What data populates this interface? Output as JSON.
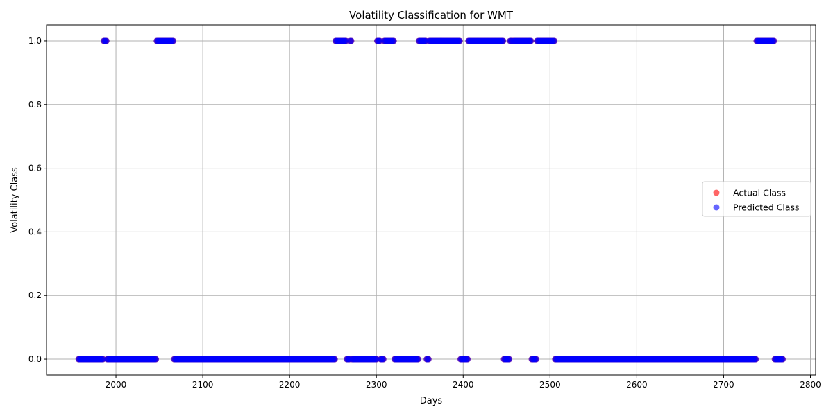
{
  "chart_data": {
    "type": "scatter",
    "title": "Volatility Classification for WMT",
    "xlabel": "Days",
    "ylabel": "Volatility Class",
    "xlim": [
      1920,
      2806
    ],
    "ylim": [
      -0.05,
      1.05
    ],
    "xticks": [
      2000,
      2100,
      2200,
      2300,
      2400,
      2500,
      2600,
      2700,
      2800
    ],
    "yticks": [
      0.0,
      0.2,
      0.4,
      0.6,
      0.8,
      1.0
    ],
    "ytick_labels": [
      "0.0",
      "0.2",
      "0.4",
      "0.6",
      "0.8",
      "1.0"
    ],
    "grid": true,
    "legend_position": "center-right",
    "series": [
      {
        "name": "Actual Class",
        "color": "#ff0000",
        "ones": [
          [
            1986,
            1989
          ],
          [
            2047,
            2066
          ],
          [
            2253,
            2265
          ],
          [
            2270,
            2271
          ],
          [
            2301,
            2304
          ],
          [
            2309,
            2320
          ],
          [
            2349,
            2357
          ],
          [
            2361,
            2396
          ],
          [
            2406,
            2446
          ],
          [
            2454,
            2478
          ],
          [
            2485,
            2505
          ],
          [
            2738,
            2758
          ]
        ],
        "zeros": [
          [
            1957,
            1985
          ],
          [
            1990,
            2046
          ],
          [
            2067,
            2252
          ],
          [
            2266,
            2269
          ],
          [
            2272,
            2300
          ],
          [
            2305,
            2308
          ],
          [
            2321,
            2348
          ],
          [
            2358,
            2360
          ],
          [
            2397,
            2405
          ],
          [
            2447,
            2453
          ],
          [
            2479,
            2484
          ],
          [
            2506,
            2737
          ],
          [
            2759,
            2768
          ]
        ]
      },
      {
        "name": "Predicted Class",
        "color": "#0000ff",
        "ones": [
          [
            1986,
            1989
          ],
          [
            2047,
            2066
          ],
          [
            2253,
            2265
          ],
          [
            2270,
            2271
          ],
          [
            2301,
            2304
          ],
          [
            2309,
            2320
          ],
          [
            2349,
            2357
          ],
          [
            2361,
            2396
          ],
          [
            2406,
            2446
          ],
          [
            2454,
            2456
          ],
          [
            2458,
            2478
          ],
          [
            2485,
            2505
          ],
          [
            2738,
            2758
          ]
        ],
        "zeros": [
          [
            1957,
            1985
          ],
          [
            1990,
            2046
          ],
          [
            2067,
            2252
          ],
          [
            2266,
            2269
          ],
          [
            2272,
            2300
          ],
          [
            2305,
            2308
          ],
          [
            2321,
            2348
          ],
          [
            2358,
            2360
          ],
          [
            2397,
            2405
          ],
          [
            2447,
            2453
          ],
          [
            2479,
            2484
          ],
          [
            2506,
            2737
          ],
          [
            2759,
            2768
          ]
        ]
      }
    ]
  }
}
